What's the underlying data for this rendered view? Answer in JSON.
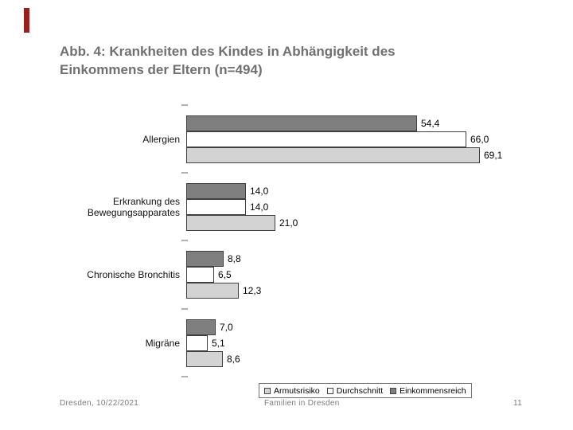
{
  "slide": {
    "title_lines": [
      "Abb. 4: Krankheiten des Kindes in Abhängigkeit des",
      "Einkommens der Eltern (n=494)"
    ],
    "accent_color": "#9c1f1f",
    "title_color": "#707070"
  },
  "footer": {
    "left": "Dresden, 10/22/2021",
    "center": "Familien in Dresden",
    "page_number": "11"
  },
  "chart_data": {
    "type": "bar",
    "orientation": "horizontal",
    "title": "Abb. 4: Krankheiten des Kindes in Abhängigkeit des Einkommens der Eltern (n=494)",
    "categories": [
      "Allergien",
      "Erkrankung des Bewegungsapparates",
      "Chronische Bronchitis",
      "Migräne"
    ],
    "series": [
      {
        "name": "Armutsrisiko",
        "color": "#d3d3d3",
        "values": [
          69.1,
          21.0,
          12.3,
          8.6
        ]
      },
      {
        "name": "Durchschnitt",
        "color": "#ffffff",
        "values": [
          66.0,
          14.0,
          6.5,
          5.1
        ]
      },
      {
        "name": "Einkommensreich",
        "color": "#7f7f7f",
        "values": [
          54.4,
          14.0,
          8.8,
          7.0
        ]
      }
    ],
    "series_plot_order": "reversed-top-to-bottom",
    "value_axis": {
      "min": 0,
      "max": 75,
      "visible": false
    },
    "gridlines": false,
    "data_labels": true,
    "decimal_separator": ",",
    "legend_position": "bottom"
  }
}
